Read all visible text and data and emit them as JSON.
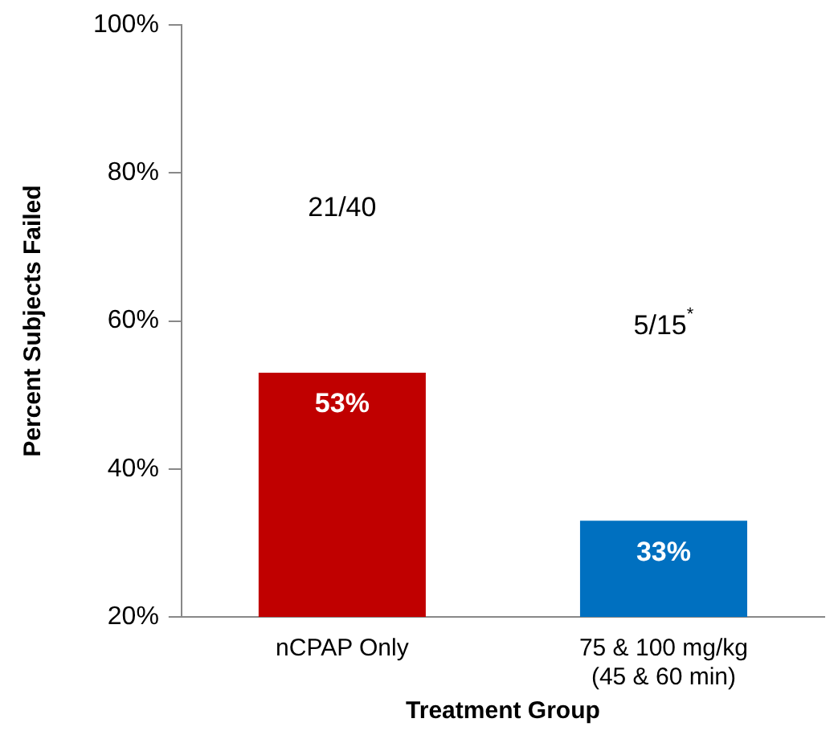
{
  "chart_data": {
    "type": "bar",
    "xlabel": "Treatment Group",
    "ylabel": "Percent Subjects Failed",
    "categories": [
      "nCPAP Only",
      "75 & 100 mg/kg\n(45 & 60 min)"
    ],
    "values": [
      53,
      33
    ],
    "colors": [
      "#c00000",
      "#0070c0"
    ],
    "value_labels": [
      "53%",
      "33%"
    ],
    "ylim": [
      20,
      100
    ],
    "yticks": [
      {
        "value": 20,
        "label": "20%"
      },
      {
        "value": 40,
        "label": "40%"
      },
      {
        "value": 60,
        "label": "60%"
      },
      {
        "value": 80,
        "label": "80%"
      },
      {
        "value": 100,
        "label": "100%"
      }
    ],
    "grid": false,
    "legend": false,
    "annotations": [
      "21/40",
      "5/15$^{*}$"
    ]
  }
}
